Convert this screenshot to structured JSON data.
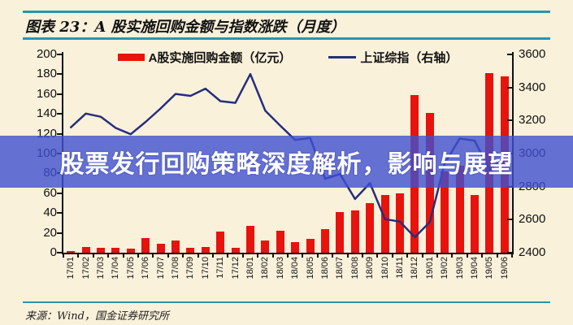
{
  "page": {
    "title": "图表 23：A 股实施回购金额与指数涨跌（月度）",
    "watermark": "股票发行回购策略深度解析，影响与展望",
    "source": "来源：Wind，国金证券研究所"
  },
  "legend": {
    "items": [
      {
        "label": "A股实施回购金额（亿元）",
        "type": "bar",
        "color": "#e8130c"
      },
      {
        "label": "上证综指（右轴）",
        "type": "line",
        "color": "#252e7d"
      }
    ]
  },
  "colors": {
    "background": "#faf1db",
    "rule_teal": "#2b95ac",
    "bar_red": "#e8130c",
    "line_navy": "#252e7d",
    "watermark_band": "rgba(62,80,208,0.8)",
    "watermark_text": "#ffffff"
  },
  "chart_data": {
    "type": "bar",
    "title": "图表 23：A 股实施回购金额与指数涨跌（月度）",
    "xlabel": "",
    "ylabel_left": "A股实施回购金额（亿元）",
    "ylabel_right": "上证综指（右轴）",
    "legend_position": "top",
    "grid": false,
    "categories": [
      "17/01",
      "17/02",
      "17/03",
      "17/04",
      "17/05",
      "17/06",
      "17/07",
      "17/08",
      "17/09",
      "17/10",
      "17/11",
      "17/12",
      "18/01",
      "18/02",
      "18/03",
      "18/04",
      "18/05",
      "18/06",
      "18/07",
      "18/08",
      "18/09",
      "18/10",
      "18/11",
      "18/12",
      "19/01",
      "19/02",
      "19/03",
      "19/04",
      "19/05",
      "19/06"
    ],
    "series": [
      {
        "name": "A股实施回购金额（亿元）",
        "type": "bar",
        "axis": "left",
        "color": "#e8130c",
        "values": [
          2,
          6,
          5,
          5,
          4,
          15,
          9,
          12,
          5,
          6,
          21,
          5,
          27,
          12,
          22,
          11,
          14,
          24,
          41,
          43,
          50,
          58,
          60,
          159,
          141,
          82,
          88,
          58,
          181,
          178
        ]
      },
      {
        "name": "上证综指（右轴）",
        "type": "line",
        "axis": "right",
        "color": "#252e7d",
        "values": [
          3159,
          3242,
          3223,
          3155,
          3117,
          3192,
          3273,
          3361,
          3349,
          3393,
          3317,
          3307,
          3481,
          3259,
          3169,
          3082,
          3095,
          2847,
          2876,
          2725,
          2821,
          2603,
          2588,
          2494,
          2585,
          2941,
          3091,
          3078,
          2898,
          2979
        ]
      }
    ],
    "left_axis": {
      "min": 0,
      "max": 200,
      "step": 20,
      "ticks": [
        0,
        20,
        40,
        60,
        80,
        100,
        120,
        140,
        160,
        180,
        200
      ]
    },
    "right_axis": {
      "min": 2400,
      "max": 3600,
      "step": 200,
      "ticks": [
        2400,
        2600,
        2800,
        3000,
        3200,
        3400,
        3600
      ]
    }
  }
}
